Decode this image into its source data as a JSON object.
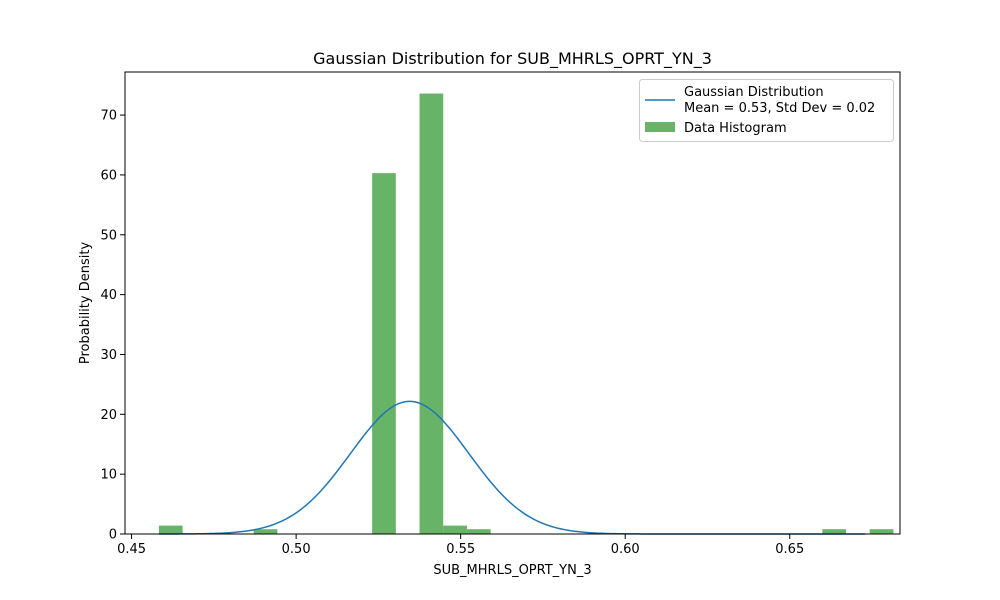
{
  "chart_data": {
    "type": "bar",
    "title": "Gaussian Distribution for SUB_MHRLS_OPRT_YN_3",
    "xlabel": "SUB_MHRLS_OPRT_YN_3",
    "ylabel": "Probability Density",
    "xlim": [
      0.448,
      0.6835
    ],
    "ylim": [
      0,
      77.2
    ],
    "x_ticks": [
      {
        "value": 0.45,
        "label": "0.45"
      },
      {
        "value": 0.5,
        "label": "0.50"
      },
      {
        "value": 0.55,
        "label": "0.55"
      },
      {
        "value": 0.6,
        "label": "0.60"
      },
      {
        "value": 0.65,
        "label": "0.65"
      }
    ],
    "y_ticks": [
      {
        "value": 0,
        "label": "0"
      },
      {
        "value": 10,
        "label": "10"
      },
      {
        "value": 20,
        "label": "20"
      },
      {
        "value": 30,
        "label": "30"
      },
      {
        "value": 40,
        "label": "40"
      },
      {
        "value": 50,
        "label": "50"
      },
      {
        "value": 60,
        "label": "60"
      },
      {
        "value": 70,
        "label": "70"
      }
    ],
    "grid": false,
    "legend_position": "top-right",
    "histogram": {
      "name": "Data Histogram",
      "color": "#4ca64c",
      "bin_start": 0.4583,
      "bin_width": 0.0072,
      "values": [
        1.4,
        0,
        0,
        0,
        0.8,
        0,
        0,
        0,
        0,
        60.3,
        0,
        73.6,
        1.4,
        0.8,
        0,
        0,
        0,
        0,
        0,
        0,
        0,
        0,
        0,
        0,
        0,
        0,
        0,
        0,
        0.8,
        0,
        0.8
      ]
    },
    "gaussian": {
      "legend_lines": [
        "Gaussian Distribution",
        "Mean = 0.53, Std Dev = 0.02"
      ],
      "color": "#1f77b4",
      "mean": 0.5345,
      "std": 0.018,
      "x_range": [
        0.4583,
        0.6729
      ]
    }
  }
}
